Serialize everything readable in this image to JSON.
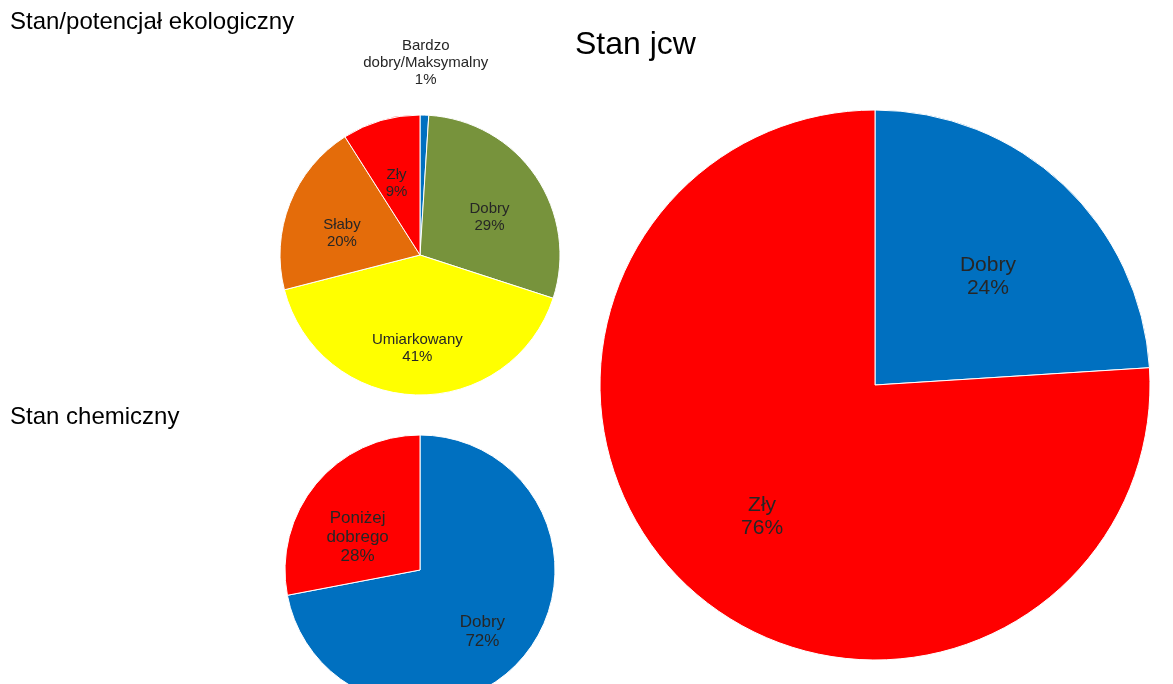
{
  "chart_data": [
    {
      "type": "pie",
      "title": "Stan/potencjał ekologiczny",
      "categories": [
        "Bardzo dobry/Maksymalny",
        "Dobry",
        "Umiarkowany",
        "Słaby",
        "Zły"
      ],
      "values": [
        1,
        29,
        41,
        20,
        9
      ],
      "value_labels": [
        "1%",
        "29%",
        "41%",
        "20%",
        "9%"
      ],
      "colors": [
        "#0070c0",
        "#77933c",
        "#ffff00",
        "#e46c0a",
        "#ff0000"
      ]
    },
    {
      "type": "pie",
      "title": "Stan chemiczny",
      "categories": [
        "Dobry",
        "Poniżej dobrego"
      ],
      "values": [
        72,
        28
      ],
      "value_labels": [
        "72%",
        "28%"
      ],
      "colors": [
        "#0070c0",
        "#ff0000"
      ]
    },
    {
      "type": "pie",
      "title": "Stan jcw",
      "categories": [
        "Dobry",
        "Zły"
      ],
      "values": [
        24,
        76
      ],
      "value_labels": [
        "24%",
        "76%"
      ],
      "colors": [
        "#0070c0",
        "#ff0000"
      ]
    }
  ]
}
